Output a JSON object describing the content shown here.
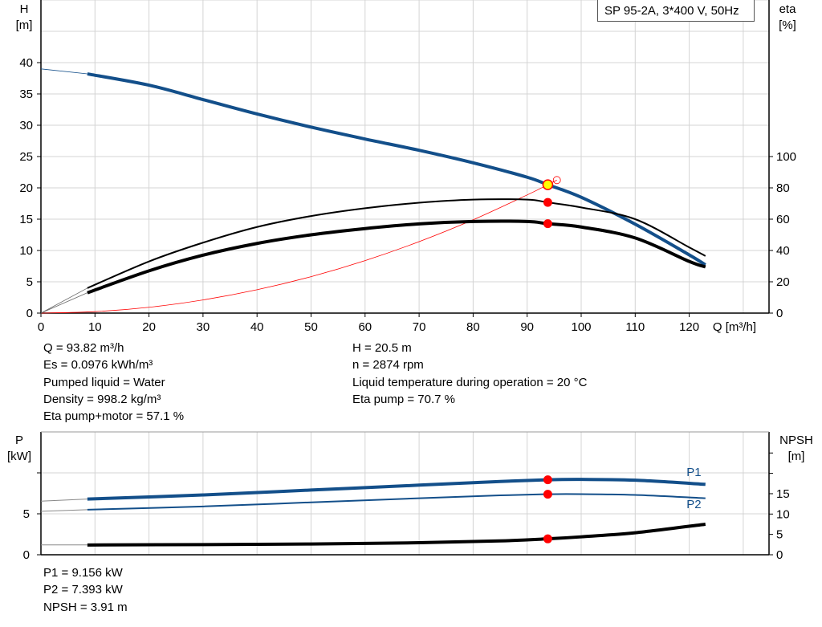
{
  "chart_data": [
    {
      "type": "line",
      "title": "SP 95-2A, 3*400 V, 50Hz",
      "xlabel": "Q [m³/h]",
      "ylabel": "H\n[m]",
      "y2label": "eta\n[%]",
      "xlim": [
        0,
        135
      ],
      "ylim": [
        0,
        50
      ],
      "y2lim": [
        0,
        200
      ],
      "xticks": [
        0,
        10,
        20,
        30,
        40,
        50,
        60,
        70,
        80,
        90,
        100,
        110,
        120
      ],
      "yticks": [
        0,
        5,
        10,
        15,
        20,
        25,
        30,
        35,
        40
      ],
      "y2ticks": [
        0,
        20,
        40,
        60,
        80,
        100
      ],
      "grid": true,
      "series": [
        {
          "id": "H",
          "axis": "left",
          "color": "#134f8a",
          "x": [
            0,
            8.6,
            20,
            30,
            40,
            50,
            60,
            70,
            80,
            90,
            93.82,
            100,
            110,
            120,
            123
          ],
          "y": [
            39,
            38.2,
            36.4,
            34.1,
            31.8,
            29.7,
            27.8,
            26.0,
            24.0,
            21.7,
            20.5,
            18.5,
            14.2,
            9.3,
            7.7
          ]
        },
        {
          "id": "eta-pump",
          "axis": "right",
          "color": "#000000",
          "x": [
            0,
            8.6,
            20,
            30,
            40,
            50,
            60,
            70,
            80,
            90,
            93.82,
            100,
            110,
            120,
            123
          ],
          "y": [
            0,
            16,
            33,
            45,
            55,
            62,
            67,
            70.5,
            72.5,
            72.5,
            70.7,
            67.5,
            60,
            42,
            36.5
          ]
        },
        {
          "id": "eta-pump-motor",
          "axis": "right",
          "color": "#000000",
          "x": [
            0,
            8.6,
            20,
            30,
            40,
            50,
            60,
            70,
            80,
            90,
            93.82,
            100,
            110,
            120,
            123
          ],
          "y": [
            0,
            13,
            27,
            37,
            44.5,
            50,
            54,
            57,
            58.5,
            58.5,
            57.1,
            55,
            48,
            33,
            29.5
          ]
        },
        {
          "id": "system-curve",
          "axis": "left",
          "color": "#ff0000",
          "x": [
            0,
            10,
            20,
            30,
            40,
            50,
            60,
            70,
            80,
            90,
            93.82,
            95.5
          ],
          "y": [
            0,
            0.23,
            0.93,
            2.1,
            3.73,
            5.82,
            8.38,
            11.41,
            14.9,
            18.87,
            20.5,
            21.24
          ]
        }
      ],
      "operating_point": {
        "Q": 93.82,
        "H": 20.5,
        "eta_pump": 70.7,
        "eta_pump_motor": 57.1
      }
    },
    {
      "type": "line",
      "ylabel": "P\n[kW]",
      "y2label": "NPSH\n[m]",
      "xlim": [
        0,
        135
      ],
      "ylim": [
        0,
        15
      ],
      "y2lim": [
        0,
        30
      ],
      "yticks": [
        0,
        5,
        10
      ],
      "y2ticks": [
        0,
        5,
        10,
        15,
        20,
        25
      ],
      "y2ticklabels": [
        "0",
        "5",
        "10",
        "15",
        "",
        ""
      ],
      "grid": true,
      "series": [
        {
          "name": "P1",
          "axis": "left",
          "color": "#134f8a",
          "x": [
            0,
            8.6,
            30,
            50,
            70,
            85,
            93.82,
            100,
            110,
            123
          ],
          "y": [
            6.55,
            6.8,
            7.3,
            7.9,
            8.5,
            8.95,
            9.156,
            9.2,
            9.1,
            8.6
          ]
        },
        {
          "name": "P2",
          "axis": "left",
          "color": "#134f8a",
          "x": [
            0,
            8.6,
            30,
            50,
            70,
            85,
            93.82,
            100,
            110,
            123
          ],
          "y": [
            5.3,
            5.5,
            5.9,
            6.4,
            6.9,
            7.25,
            7.393,
            7.4,
            7.3,
            6.9
          ]
        },
        {
          "id": "NPSH",
          "axis": "right",
          "color": "#000000",
          "x": [
            0,
            8.6,
            30,
            50,
            70,
            85,
            93.82,
            100,
            110,
            123
          ],
          "y": [
            2.4,
            2.4,
            2.5,
            2.65,
            2.95,
            3.4,
            3.91,
            4.4,
            5.4,
            7.5
          ]
        }
      ],
      "operating_point": {
        "Q": 93.82,
        "P1": 9.156,
        "P2": 7.393,
        "NPSH": 3.91
      }
    }
  ],
  "info_top_left": [
    "Q = 93.82 m³/h",
    "Es = 0.0976 kWh/m³",
    "Pumped liquid = Water",
    "Density = 998.2 kg/m³",
    "Eta pump+motor = 57.1 %"
  ],
  "info_top_right": [
    "H = 20.5 m",
    "n = 2874 rpm",
    "Liquid temperature during operation = 20 °C",
    "Eta pump = 70.7 %"
  ],
  "info_bottom": [
    "P1 = 9.156 kW",
    "P2 = 7.393 kW",
    "NPSH = 3.91 m"
  ]
}
